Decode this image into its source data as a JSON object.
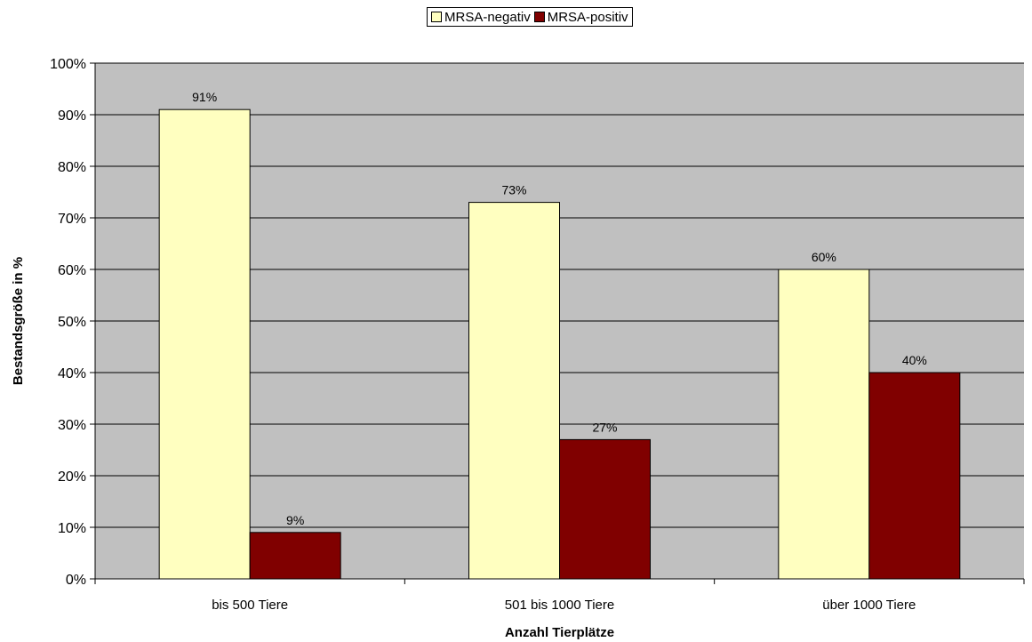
{
  "chart_data": {
    "type": "bar",
    "categories": [
      "bis 500 Tiere",
      "501 bis 1000 Tiere",
      "über 1000 Tiere"
    ],
    "series": [
      {
        "name": "MRSA-negativ",
        "values": [
          91,
          73,
          60
        ],
        "color": "#FFFFC0"
      },
      {
        "name": "MRSA-positiv",
        "values": [
          9,
          27,
          40
        ],
        "color": "#800000"
      }
    ],
    "data_labels": [
      [
        "91%",
        "73%",
        "60%"
      ],
      [
        "9%",
        "27%",
        "40%"
      ]
    ],
    "xlabel": "Anzahl Tierplätze",
    "ylabel": "Bestandsgröße in %",
    "ylim": [
      0,
      100
    ],
    "yticks": [
      0,
      10,
      20,
      30,
      40,
      50,
      60,
      70,
      80,
      90,
      100
    ],
    "ytick_labels": [
      "0%",
      "10%",
      "20%",
      "30%",
      "40%",
      "50%",
      "60%",
      "70%",
      "80%",
      "90%",
      "100%"
    ],
    "grid": true,
    "plot_background": "#C0C0C0",
    "legend_position": "top-center"
  }
}
